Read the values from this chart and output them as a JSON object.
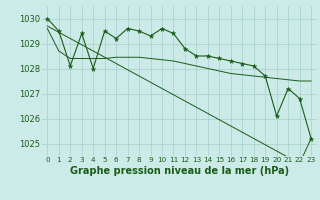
{
  "title": "Graphe pression niveau de la mer (hPa)",
  "background_color": "#cceae7",
  "grid_color": "#aad4d0",
  "line_color": "#1a5c1a",
  "marker_color": "#1a5c1a",
  "x_values": [
    0,
    1,
    2,
    3,
    4,
    5,
    6,
    7,
    8,
    9,
    10,
    11,
    12,
    13,
    14,
    15,
    16,
    17,
    18,
    19,
    20,
    21,
    22,
    23
  ],
  "y_main": [
    1030.0,
    1029.5,
    1028.1,
    1029.4,
    1028.0,
    1029.5,
    1029.2,
    1029.6,
    1029.5,
    1029.3,
    1029.6,
    1029.4,
    1028.8,
    1028.5,
    1028.5,
    1028.4,
    1028.3,
    1028.2,
    1028.1,
    1027.7,
    1026.1,
    1027.2,
    1026.8,
    1025.2
  ],
  "y_trend": [
    1029.7,
    1029.45,
    1029.2,
    1028.95,
    1028.7,
    1028.45,
    1028.2,
    1027.95,
    1027.7,
    1027.45,
    1027.2,
    1026.95,
    1026.7,
    1026.45,
    1026.2,
    1025.95,
    1025.7,
    1025.45,
    1025.2,
    1024.95,
    1024.7,
    1024.45,
    1024.2,
    1025.2
  ],
  "y_smooth": [
    1029.6,
    1028.7,
    1028.4,
    1028.4,
    1028.4,
    1028.4,
    1028.45,
    1028.45,
    1028.45,
    1028.4,
    1028.35,
    1028.3,
    1028.2,
    1028.1,
    1028.0,
    1027.9,
    1027.8,
    1027.75,
    1027.7,
    1027.65,
    1027.6,
    1027.55,
    1027.5,
    1027.5
  ],
  "ylim": [
    1024.5,
    1030.5
  ],
  "yticks": [
    1025,
    1026,
    1027,
    1028,
    1029,
    1030
  ],
  "xlim": [
    -0.5,
    23.5
  ],
  "title_fontsize": 7,
  "tick_fontsize": 6,
  "label_color": "#1a5c1a",
  "figsize": [
    3.2,
    2.0
  ],
  "dpi": 100
}
